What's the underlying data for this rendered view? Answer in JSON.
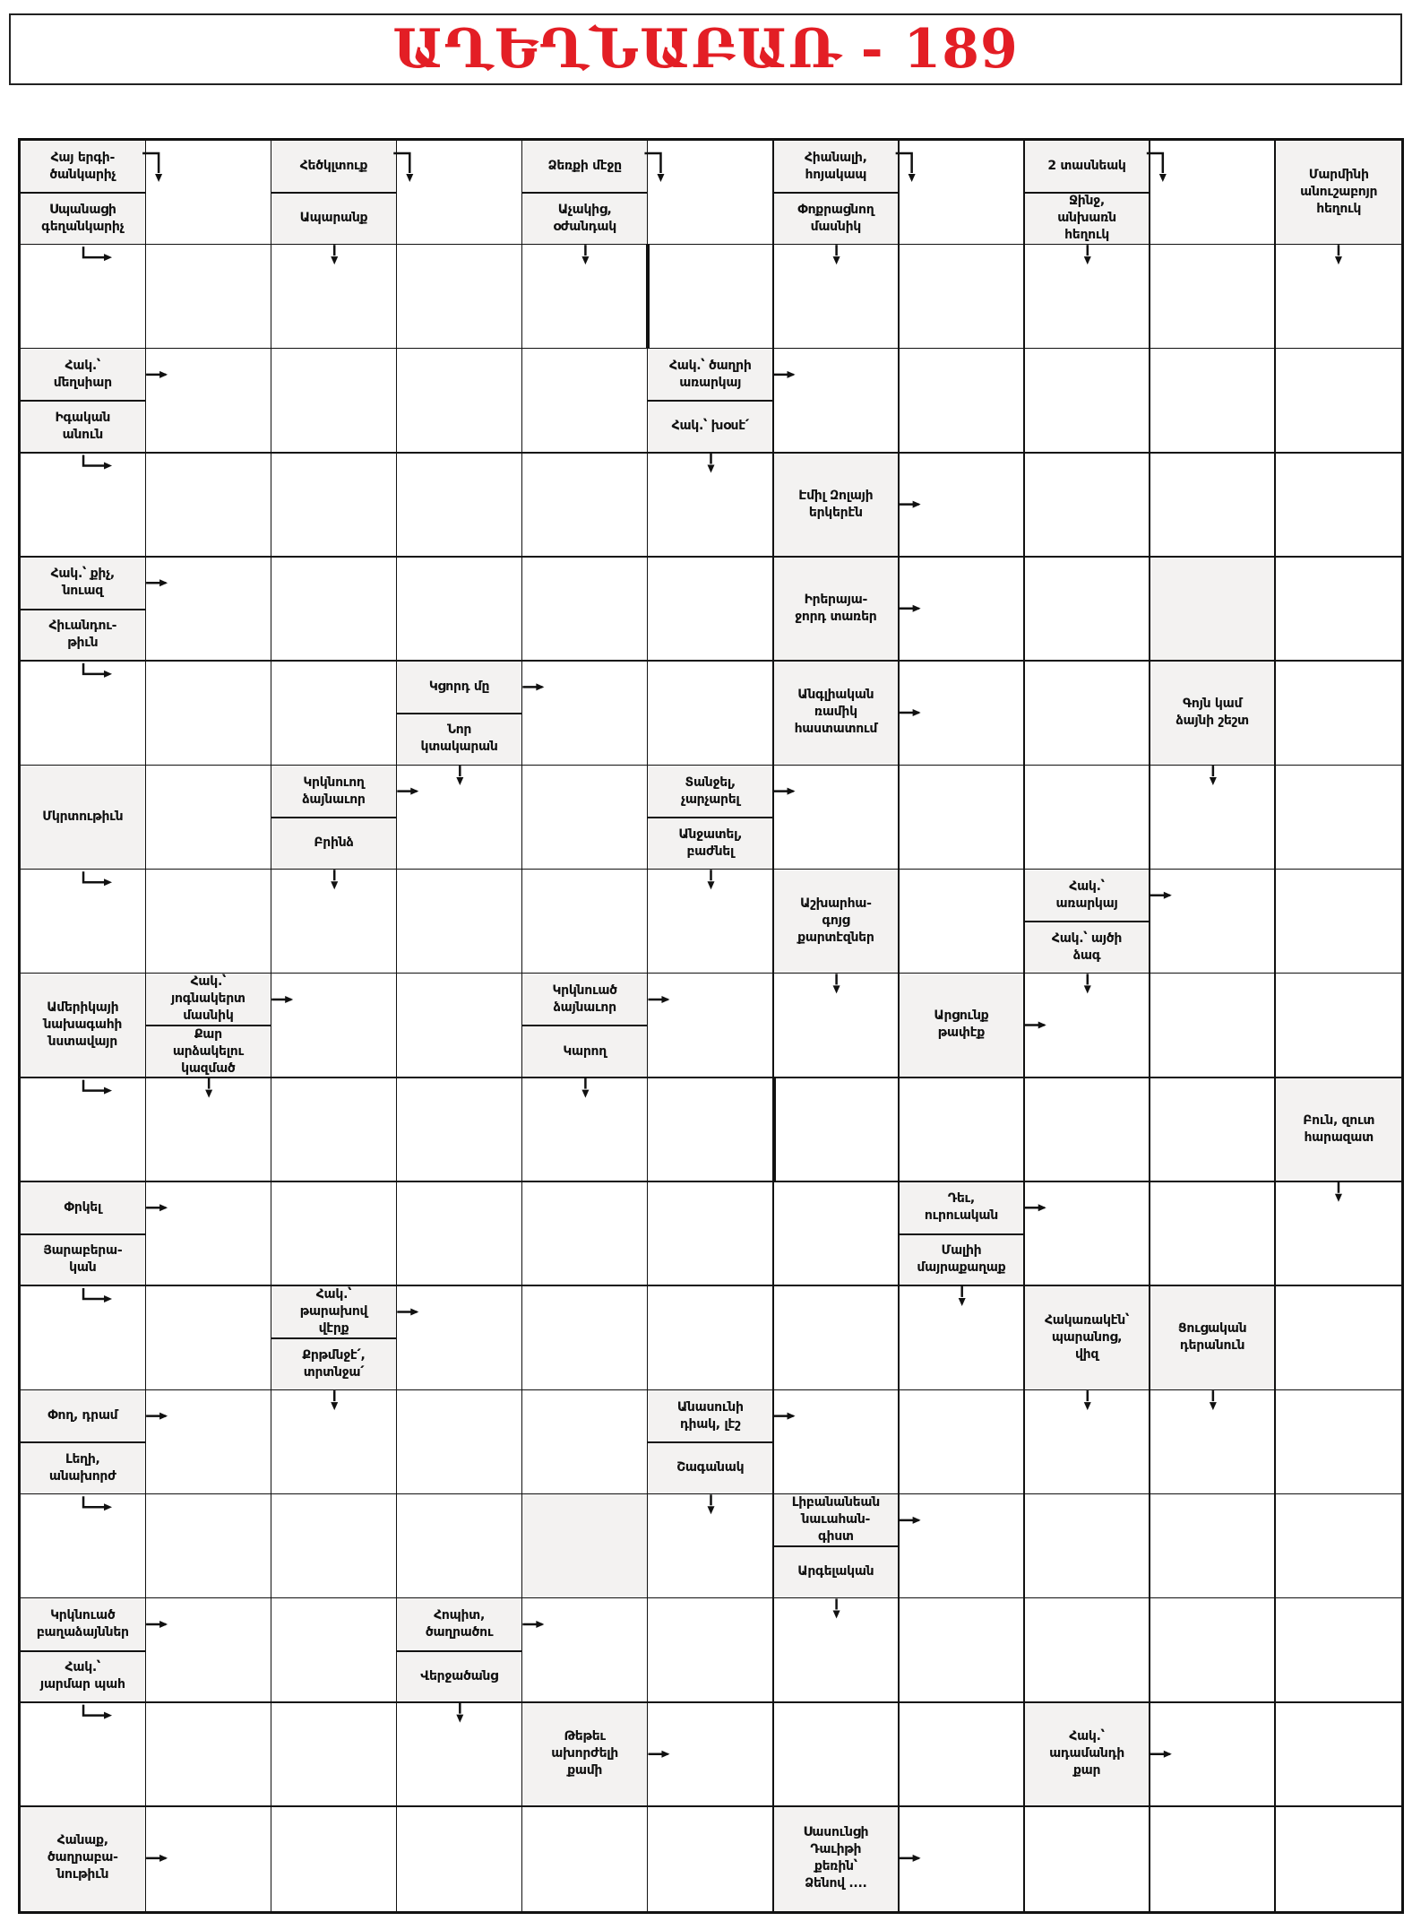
{
  "title": "ԱՂԵՂՆԱԲԱՌ - 189",
  "grid": {
    "rows": 17,
    "cols": 11,
    "shaded_blank": [
      [
        4,
        9
      ],
      [
        13,
        4
      ]
    ],
    "clues": [
      {
        "row": 0,
        "col": 0,
        "texts": [
          "Հայ երգի-\nծանկարիչ",
          "Սպանացի\nգեղանկարիչ"
        ],
        "arrows": [
          "right-down",
          "down-right"
        ]
      },
      {
        "row": 0,
        "col": 2,
        "texts": [
          "Հեծկլտուք",
          "Ապարանք"
        ],
        "arrows": [
          "right-down",
          "down"
        ]
      },
      {
        "row": 0,
        "col": 4,
        "texts": [
          "Ձեռքի մէջը",
          "Աչակից,\nօժանդակ"
        ],
        "arrows": [
          "right-down",
          "down"
        ]
      },
      {
        "row": 0,
        "col": 6,
        "texts": [
          "Հիանալի,\nհոյակապ",
          "Փոքրացնող\nմասնիկ"
        ],
        "arrows": [
          "right-down",
          "down"
        ]
      },
      {
        "row": 0,
        "col": 8,
        "texts": [
          "2 տասնեակ",
          "Ջինջ,\nանխառն\nհեղուկ"
        ],
        "arrows": [
          "right-down",
          "down"
        ]
      },
      {
        "row": 0,
        "col": 10,
        "texts": [
          "Մարմինի\nանուշաբոյր\nհեղուկ"
        ],
        "arrows": [
          "down"
        ]
      },
      {
        "row": 2,
        "col": 0,
        "texts": [
          "Հակ.՝\nմեղսիար",
          "Իգական\nանուն"
        ],
        "arrows": [
          "right",
          "down-right"
        ]
      },
      {
        "row": 2,
        "col": 5,
        "texts": [
          "Հակ.՝ ծաղրի\nառարկայ",
          "Հակ.՝ խօսէ՛"
        ],
        "arrows": [
          "right",
          "down"
        ]
      },
      {
        "row": 3,
        "col": 6,
        "texts": [
          "Էմիլ Զոլայի\nերկերէն"
        ],
        "arrows": [
          "right"
        ]
      },
      {
        "row": 4,
        "col": 0,
        "texts": [
          "Հակ.՝ քիչ,\nնուազ",
          "Հիւանդու-\nթիւն"
        ],
        "arrows": [
          "right",
          "down-right"
        ]
      },
      {
        "row": 4,
        "col": 6,
        "texts": [
          "Իրերայա-\nջորդ տառեր"
        ],
        "arrows": [
          "right"
        ]
      },
      {
        "row": 5,
        "col": 3,
        "texts": [
          "Կցորդ մը",
          "Նոր\nկտակարան"
        ],
        "arrows": [
          "right",
          "down"
        ]
      },
      {
        "row": 5,
        "col": 6,
        "texts": [
          "Անգլիական\nռամիկ\nհաստատում"
        ],
        "arrows": [
          "right"
        ]
      },
      {
        "row": 5,
        "col": 9,
        "texts": [
          "Գոյն կամ\nձայնի շեշտ"
        ],
        "arrows": [
          "down"
        ]
      },
      {
        "row": 6,
        "col": 0,
        "texts": [
          "Մկրտութիւն"
        ],
        "arrows": [
          "down-right"
        ]
      },
      {
        "row": 6,
        "col": 2,
        "texts": [
          "Կրկնուող\nձայնաւոր",
          "Բրինձ"
        ],
        "arrows": [
          "right",
          "down"
        ]
      },
      {
        "row": 6,
        "col": 5,
        "texts": [
          "Տանջել,\nչարչարել",
          "Անջատել,\nբաժնել"
        ],
        "arrows": [
          "right",
          "down"
        ]
      },
      {
        "row": 7,
        "col": 6,
        "texts": [
          "Աշխարհա-\nգոյց\nքարտէզներ"
        ],
        "arrows": [
          "down"
        ]
      },
      {
        "row": 7,
        "col": 8,
        "texts": [
          "Հակ.՝\nառարկայ",
          "Հակ.՝ այծի\nձագ"
        ],
        "arrows": [
          "right",
          "down"
        ]
      },
      {
        "row": 8,
        "col": 0,
        "texts": [
          "Ամերիկայի\nնախագահի\nնստավայր"
        ],
        "arrows": [
          "down-right"
        ]
      },
      {
        "row": 8,
        "col": 1,
        "texts": [
          "Հակ.՝\nյոգնակերտ\nմասնիկ",
          "Քար\nարձակելու\nկազմած"
        ],
        "arrows": [
          "right",
          "down"
        ]
      },
      {
        "row": 8,
        "col": 4,
        "texts": [
          "Կրկնուած\nձայնաւոր",
          "Կարող"
        ],
        "arrows": [
          "right",
          "down"
        ]
      },
      {
        "row": 8,
        "col": 7,
        "texts": [
          "Արցունք\nթափէք"
        ],
        "arrows": [
          "right"
        ]
      },
      {
        "row": 9,
        "col": 10,
        "texts": [
          "Բուն, զուտ\nհարազատ"
        ],
        "arrows": [
          "down"
        ]
      },
      {
        "row": 10,
        "col": 0,
        "texts": [
          "Փրկել",
          "Յարաբերա-\nկան"
        ],
        "arrows": [
          "right",
          "down-right"
        ]
      },
      {
        "row": 10,
        "col": 7,
        "texts": [
          "Դեւ,\nուրուական",
          "Մալիի\nմայրաքաղաք"
        ],
        "arrows": [
          "right",
          "down"
        ]
      },
      {
        "row": 11,
        "col": 2,
        "texts": [
          "Հակ.՝\nթարախով\nվէրք",
          "Քրթմնջէ՛,\nտրտնջա՛"
        ],
        "arrows": [
          "right",
          "down"
        ]
      },
      {
        "row": 11,
        "col": 8,
        "texts": [
          "Հակառակէն՝\nպարանոց,\nվիզ"
        ],
        "arrows": [
          "down"
        ]
      },
      {
        "row": 11,
        "col": 9,
        "texts": [
          "Ցուցական\nդերանուն"
        ],
        "arrows": [
          "down"
        ]
      },
      {
        "row": 12,
        "col": 0,
        "texts": [
          "Փող, դրամ",
          "Լեղի,\nանախորժ"
        ],
        "arrows": [
          "right",
          "down-right"
        ]
      },
      {
        "row": 12,
        "col": 5,
        "texts": [
          "Անասունի\nդիակ, լէշ",
          "Շագանակ"
        ],
        "arrows": [
          "right",
          "down"
        ]
      },
      {
        "row": 13,
        "col": 6,
        "texts": [
          "Լիբանանեան\nնաւահան-\nգիստ",
          "Արգելական"
        ],
        "arrows": [
          "right",
          "down"
        ]
      },
      {
        "row": 14,
        "col": 0,
        "texts": [
          "Կրկնուած\nբաղաձայններ",
          "Հակ.՝\nյարմար պահ"
        ],
        "arrows": [
          "right",
          "down-right"
        ]
      },
      {
        "row": 14,
        "col": 3,
        "texts": [
          "Հոպիտ,\nծաղրածու",
          "Վերջածանց"
        ],
        "arrows": [
          "right",
          "down"
        ]
      },
      {
        "row": 15,
        "col": 4,
        "texts": [
          "Թեթեւ\nախորժելի\nքամի"
        ],
        "arrows": [
          "right"
        ]
      },
      {
        "row": 15,
        "col": 8,
        "texts": [
          "Հակ.՝\nադամանդի\nքար"
        ],
        "arrows": [
          "right"
        ]
      },
      {
        "row": 16,
        "col": 0,
        "texts": [
          "Հանաք,\nծաղրաբա-\nնութիւն"
        ],
        "arrows": [
          "right"
        ]
      },
      {
        "row": 16,
        "col": 6,
        "texts": [
          "Սասունցի\nԴաւիթի\nքեռին՝\nՁենով ...."
        ],
        "arrows": [
          "right"
        ]
      }
    ]
  },
  "colors": {
    "title": "#e31e25",
    "clue_background": "#f3f2f1",
    "lines": "#111111"
  }
}
